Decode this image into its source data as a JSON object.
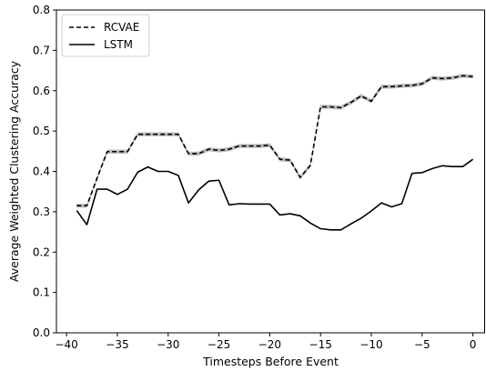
{
  "chart_data": {
    "type": "line",
    "title": "",
    "xlabel": "Timesteps Before Event",
    "ylabel": "Average Weighted Clustering Accuracy",
    "xlim": [
      -41,
      1.2
    ],
    "ylim": [
      0.0,
      0.8
    ],
    "xticks": [
      -40,
      -35,
      -30,
      -25,
      -20,
      -15,
      -10,
      -5,
      0
    ],
    "xtick_labels": [
      "−40",
      "−35",
      "−30",
      "−25",
      "−20",
      "−15",
      "−10",
      "−5",
      "0"
    ],
    "yticks": [
      0.0,
      0.1,
      0.2,
      0.3,
      0.4,
      0.5,
      0.6,
      0.7,
      0.8
    ],
    "ytick_labels": [
      "0.0",
      "0.1",
      "0.2",
      "0.3",
      "0.4",
      "0.5",
      "0.6",
      "0.7",
      "0.8"
    ],
    "grid": false,
    "legend_position": "top-left",
    "x": [
      -39,
      -38,
      -37,
      -36,
      -35,
      -34,
      -33,
      -32,
      -31,
      -30,
      -29,
      -28,
      -27,
      -26,
      -25,
      -24,
      -23,
      -22,
      -21,
      -20,
      -19,
      -18,
      -17,
      -16,
      -15,
      -14,
      -13,
      -12,
      -11,
      -10,
      -9,
      -8,
      -7,
      -6,
      -5,
      -4,
      -3,
      -2,
      -1,
      0
    ],
    "series": [
      {
        "name": "RCVAE",
        "style": "dashed",
        "color": "#000000",
        "band_color": "#bdbdbd",
        "values": [
          0.315,
          0.315,
          0.383,
          0.449,
          0.449,
          0.449,
          0.492,
          0.492,
          0.492,
          0.492,
          0.492,
          0.444,
          0.444,
          0.455,
          0.452,
          0.455,
          0.463,
          0.463,
          0.463,
          0.465,
          0.43,
          0.428,
          0.385,
          0.415,
          0.56,
          0.56,
          0.558,
          0.571,
          0.587,
          0.574,
          0.61,
          0.61,
          0.612,
          0.613,
          0.617,
          0.632,
          0.63,
          0.632,
          0.637,
          0.635
        ]
      },
      {
        "name": "LSTM",
        "style": "solid",
        "color": "#000000",
        "values": [
          0.303,
          0.268,
          0.356,
          0.356,
          0.343,
          0.356,
          0.398,
          0.411,
          0.4,
          0.4,
          0.39,
          0.322,
          0.354,
          0.376,
          0.378,
          0.317,
          0.32,
          0.319,
          0.319,
          0.319,
          0.292,
          0.295,
          0.29,
          0.272,
          0.258,
          0.255,
          0.255,
          0.27,
          0.284,
          0.302,
          0.322,
          0.312,
          0.32,
          0.395,
          0.397,
          0.407,
          0.414,
          0.412,
          0.412,
          0.43
        ]
      }
    ]
  }
}
